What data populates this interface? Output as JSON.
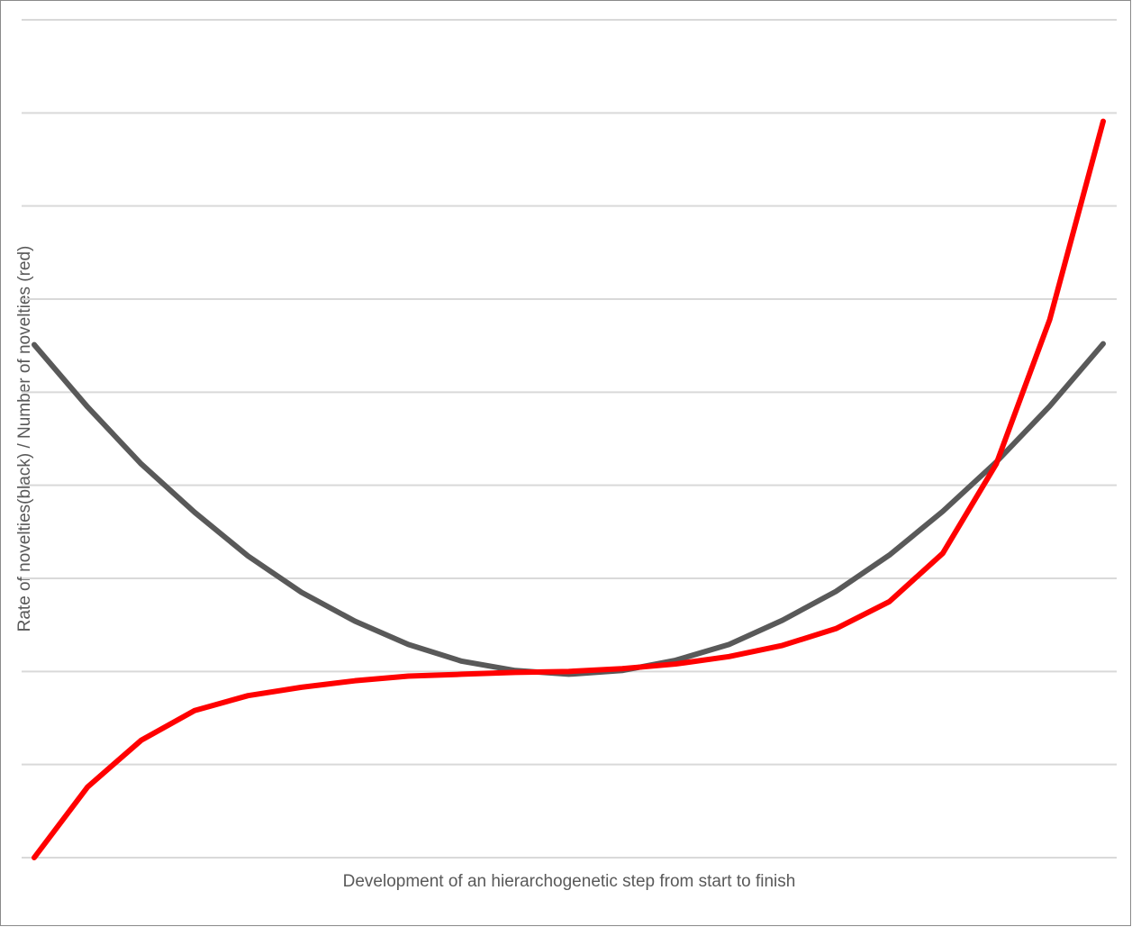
{
  "chart_data": {
    "type": "line",
    "x_label": "Development of an hierarchogenetic step from start to finish",
    "y_label": "Rate of novelties(black) / Number of novelties (red)",
    "categories": [
      null,
      null,
      null,
      null,
      null,
      null,
      null,
      null,
      null,
      null,
      null,
      null,
      null,
      null,
      null,
      null,
      null,
      null,
      null,
      null,
      null
    ],
    "series": [
      {
        "color": "#595959",
        "values": [
          5.51,
          4.84,
          4.23,
          3.71,
          3.24,
          2.85,
          2.54,
          2.29,
          2.11,
          2.01,
          1.97,
          2.01,
          2.12,
          2.29,
          2.55,
          2.86,
          3.25,
          3.72,
          4.25,
          4.85,
          5.52
        ]
      },
      {
        "color": "#ff0000",
        "values": [
          0,
          0.76,
          1.26,
          1.58,
          1.74,
          1.83,
          1.9,
          1.95,
          1.97,
          1.99,
          2.0,
          2.03,
          2.08,
          2.16,
          2.28,
          2.46,
          2.75,
          3.27,
          4.23,
          5.78,
          7.91
        ]
      }
    ],
    "ylim": [
      0,
      9
    ],
    "yticks": [
      0,
      1,
      2,
      3,
      4,
      5,
      6,
      7,
      8,
      9
    ],
    "grid": true
  }
}
